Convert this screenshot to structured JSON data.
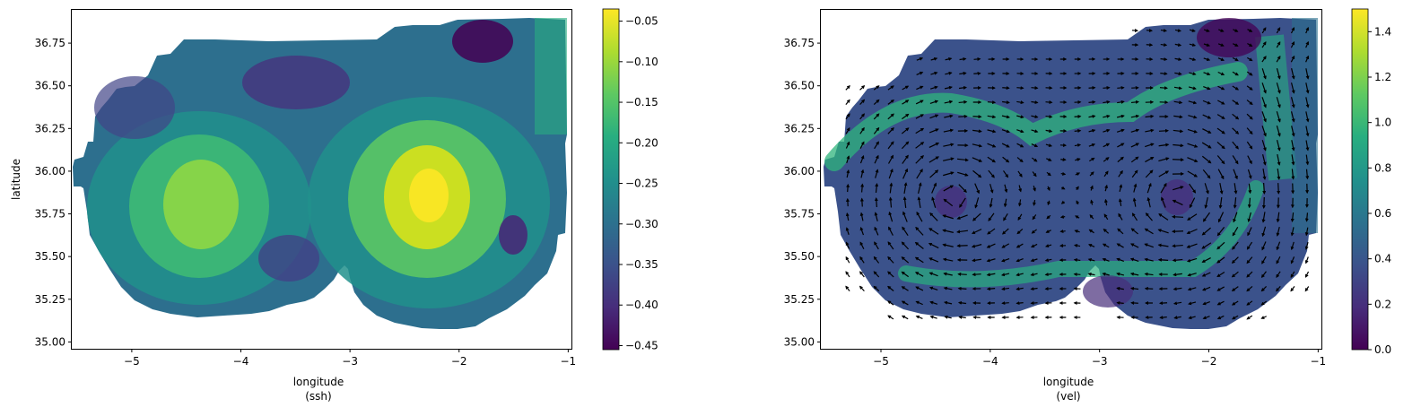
{
  "chart_data": [
    {
      "type": "heatmap",
      "field": "ssh",
      "xlabel": "longitude",
      "xlabel_sub": "(ssh)",
      "ylabel": "latitude",
      "xlim": [
        -5.55,
        -0.97
      ],
      "ylim": [
        34.96,
        36.95
      ],
      "xticks": [
        -5,
        -4,
        -3,
        -2,
        -1
      ],
      "xtick_labels": [
        "−5",
        "−4",
        "−3",
        "−2",
        "−1"
      ],
      "yticks": [
        35.0,
        35.25,
        35.5,
        35.75,
        36.0,
        36.25,
        36.5,
        36.75
      ],
      "ytick_labels": [
        "35.00",
        "35.25",
        "35.50",
        "35.75",
        "36.00",
        "36.25",
        "36.50",
        "36.75"
      ],
      "colormap": "viridis",
      "colorbar": {
        "range": [
          -0.455,
          -0.035
        ],
        "ticks": [
          -0.45,
          -0.4,
          -0.35,
          -0.3,
          -0.25,
          -0.2,
          -0.15,
          -0.1,
          -0.05
        ],
        "tick_labels": [
          "−0.45",
          "−0.40",
          "−0.35",
          "−0.30",
          "−0.25",
          "−0.20",
          "−0.15",
          "−0.10",
          "−0.05"
        ]
      },
      "features": [
        {
          "kind": "high",
          "lon": -4.35,
          "lat": 35.85,
          "value": -0.12
        },
        {
          "kind": "high",
          "lon": -2.2,
          "lat": 35.88,
          "value": -0.04
        },
        {
          "kind": "low",
          "lon": -1.8,
          "lat": 36.75,
          "value": -0.45
        },
        {
          "kind": "low",
          "lon": -3.25,
          "lat": 36.55,
          "value": -0.42
        },
        {
          "kind": "low",
          "lon": -1.45,
          "lat": 35.62,
          "value": -0.4
        },
        {
          "kind": "low",
          "lon": -3.55,
          "lat": 35.5,
          "value": -0.38
        }
      ]
    },
    {
      "type": "heatmap",
      "field": "vel",
      "xlabel": "longitude",
      "xlabel_sub": "(vel)",
      "ylabel": "",
      "xlim": [
        -5.55,
        -0.97
      ],
      "ylim": [
        34.96,
        36.95
      ],
      "xticks": [
        -5,
        -4,
        -3,
        -2,
        -1
      ],
      "xtick_labels": [
        "−5",
        "−4",
        "−3",
        "−2",
        "−1"
      ],
      "yticks": [
        35.0,
        35.25,
        35.5,
        35.75,
        36.0,
        36.25,
        36.5,
        36.75
      ],
      "ytick_labels": [
        "35.00",
        "35.25",
        "35.50",
        "35.75",
        "36.00",
        "36.25",
        "36.50",
        "36.75"
      ],
      "colormap": "viridis",
      "overlay": "quiver",
      "colorbar": {
        "range": [
          0.0,
          1.5
        ],
        "ticks": [
          0.0,
          0.2,
          0.4,
          0.6,
          0.8,
          1.0,
          1.2,
          1.4
        ],
        "tick_labels": [
          "0.0",
          "0.2",
          "0.4",
          "0.6",
          "0.8",
          "1.0",
          "1.2",
          "1.4"
        ]
      },
      "features": [
        {
          "kind": "anticyclonic gyre",
          "lon": -4.35,
          "lat": 35.85
        },
        {
          "kind": "anticyclonic gyre",
          "lon": -2.25,
          "lat": 35.85
        },
        {
          "kind": "inflow jet",
          "lon": -5.5,
          "lat": 36.0
        },
        {
          "kind": "southward flow",
          "lon": -1.25,
          "lat": 36.5
        }
      ]
    }
  ]
}
